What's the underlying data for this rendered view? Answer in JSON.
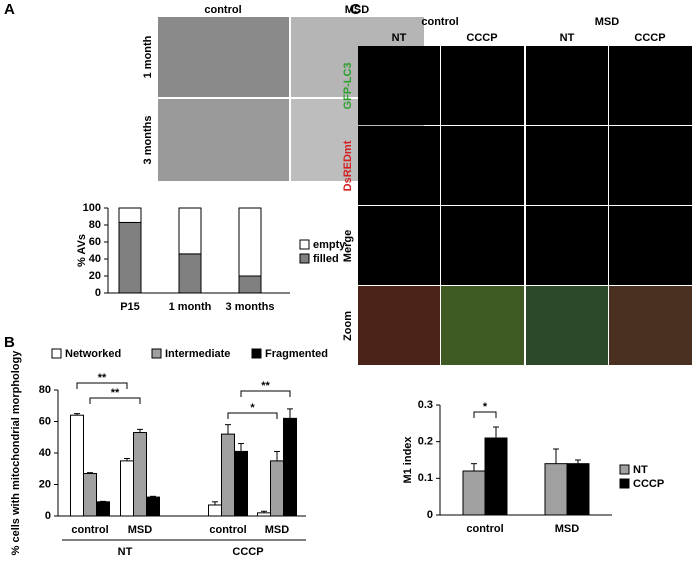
{
  "panels": {
    "A": {
      "label": "A",
      "columns": [
        "control",
        "MSD"
      ],
      "rows": [
        "1 month",
        "3 months"
      ]
    },
    "B": {
      "label": "B"
    },
    "C": {
      "label": "C",
      "columns": [
        "control",
        "MSD"
      ],
      "subcolumns": [
        "NT",
        "CCCP",
        "NT",
        "CCCP"
      ],
      "rows": [
        "GFP-LC3",
        "DsREDmt",
        "Merge",
        "Zoom"
      ]
    }
  },
  "chart_data": [
    {
      "type": "bar",
      "stacked": true,
      "categories": [
        "P15",
        "1 month",
        "3 months"
      ],
      "series": [
        {
          "name": "empty",
          "color": "#ffffff",
          "values": [
            17,
            54,
            80
          ]
        },
        {
          "name": "filled",
          "color": "#808080",
          "values": [
            83,
            46,
            20
          ]
        }
      ],
      "ylabel": "% AVs",
      "ylim": [
        0,
        100
      ],
      "yticks": [
        0,
        20,
        40,
        60,
        80,
        100
      ],
      "legend": "right"
    },
    {
      "type": "bar",
      "categories": [
        "control",
        "MSD",
        "control",
        "MSD"
      ],
      "groups": [
        "NT",
        "CCCP"
      ],
      "series": [
        {
          "name": "Networked",
          "color": "#ffffff",
          "values": [
            64,
            35,
            7,
            2
          ],
          "errors": [
            1,
            1.5,
            2,
            1
          ]
        },
        {
          "name": "Intermediate",
          "color": "#a0a0a0",
          "values": [
            27,
            53,
            52,
            35
          ],
          "errors": [
            0.5,
            2,
            6,
            6
          ]
        },
        {
          "name": "Fragmented",
          "color": "#000000",
          "values": [
            9,
            12,
            41,
            62
          ],
          "errors": [
            0.3,
            0.5,
            5,
            6
          ]
        }
      ],
      "ylabel": "% cells with mitochondrial morphology",
      "ylim": [
        0,
        80
      ],
      "yticks": [
        0,
        20,
        40,
        60,
        80
      ],
      "legend": "top",
      "annotations": [
        "**",
        "**",
        "*",
        "**"
      ]
    },
    {
      "type": "bar",
      "categories": [
        "control",
        "MSD"
      ],
      "series": [
        {
          "name": "NT",
          "color": "#a0a0a0",
          "values": [
            0.12,
            0.14
          ],
          "errors": [
            0.02,
            0.04
          ]
        },
        {
          "name": "CCCP",
          "color": "#000000",
          "values": [
            0.21,
            0.14
          ],
          "errors": [
            0.03,
            0.01
          ]
        }
      ],
      "ylabel": "M1 index",
      "ylim": [
        0,
        0.3
      ],
      "yticks": [
        0,
        0.1,
        0.2,
        0.3
      ],
      "legend": "right",
      "annotations": [
        "*"
      ]
    }
  ]
}
